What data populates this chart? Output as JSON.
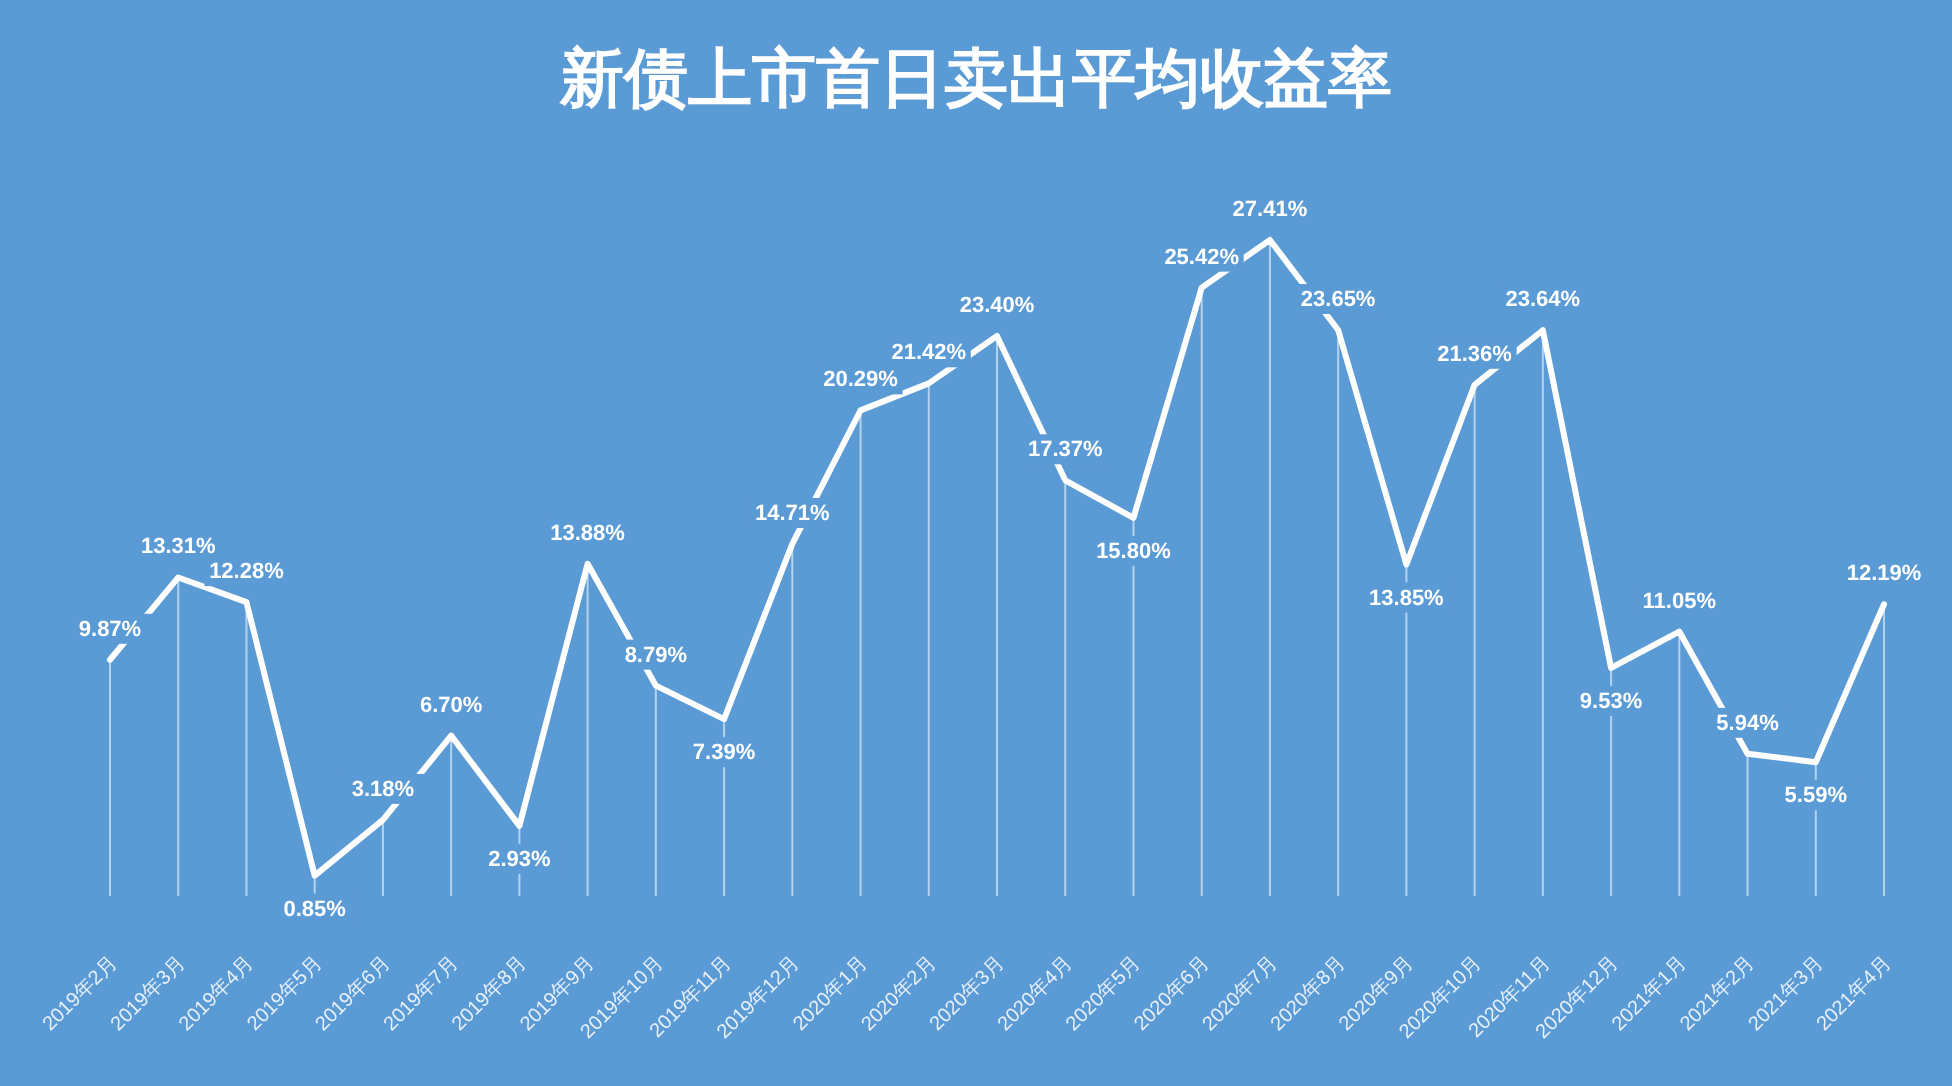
{
  "chart_data": {
    "type": "line",
    "title": "新债上市首日卖出平均收益率",
    "categories": [
      "2019年2月",
      "2019年3月",
      "2019年4月",
      "2019年5月",
      "2019年6月",
      "2019年7月",
      "2019年8月",
      "2019年9月",
      "2019年10月",
      "2019年11月",
      "2019年12月",
      "2020年1月",
      "2020年2月",
      "2020年3月",
      "2020年4月",
      "2020年5月",
      "2020年6月",
      "2020年7月",
      "2020年8月",
      "2020年9月",
      "2020年10月",
      "2020年11月",
      "2020年12月",
      "2021年1月",
      "2021年2月",
      "2021年3月",
      "2021年4月"
    ],
    "series": [
      {
        "color": "#ffffff",
        "values": [
          9.87,
          13.31,
          12.28,
          0.85,
          3.18,
          6.7,
          2.93,
          13.88,
          8.79,
          7.39,
          14.71,
          20.29,
          21.42,
          23.4,
          17.37,
          15.8,
          25.42,
          27.41,
          23.65,
          13.85,
          21.36,
          23.64,
          9.53,
          11.05,
          5.94,
          5.59,
          12.19
        ],
        "value_labels": [
          "9.87%",
          "13.31%",
          "12.28%",
          "0.85%",
          "3.18%",
          "6.70%",
          "2.93%",
          "13.88%",
          "8.79%",
          "7.39%",
          "14.71%",
          "20.29%",
          "21.42%",
          "23.40%",
          "17.37%",
          "15.80%",
          "25.42%",
          "27.41%",
          "23.65%",
          "13.85%",
          "21.36%",
          "23.64%",
          "9.53%",
          "11.05%",
          "5.94%",
          "5.59%",
          "12.19%"
        ]
      }
    ],
    "grid": "x",
    "marker": "none",
    "line_style": "solid"
  }
}
